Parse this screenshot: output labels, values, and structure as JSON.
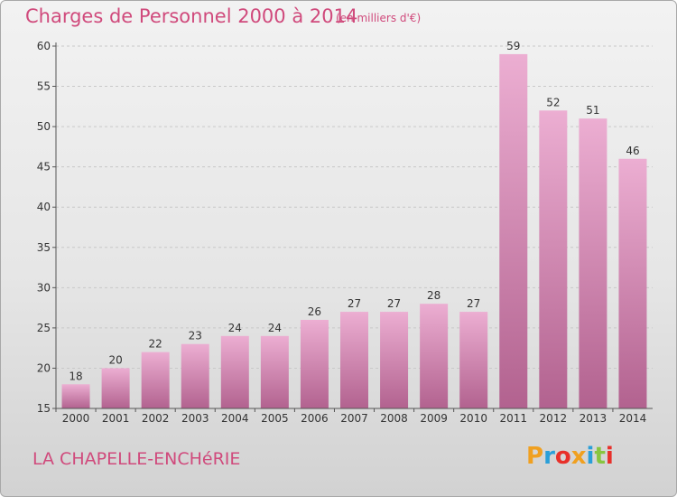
{
  "header": {
    "title": "Charges de Personnel 2000 à 2014",
    "subtitle": "(en milliers d'€)"
  },
  "footer": {
    "town": "LA CHAPELLE-ENCHéRIE",
    "logo": "Proxiti"
  },
  "colors": {
    "accent": "#d04a7c",
    "bar_light": "#ecaed2",
    "bar_dark": "#b2628f",
    "logo_letters": [
      "#f0a020",
      "#2a9fd8",
      "#e8302a",
      "#f0a020",
      "#2a9fd8",
      "#88c540",
      "#e8302a"
    ]
  },
  "chart_data": {
    "type": "bar",
    "title": "Charges de Personnel 2000 à 2014",
    "subtitle": "(en milliers d'€)",
    "xlabel": "",
    "ylabel": "",
    "categories": [
      "2000",
      "2001",
      "2002",
      "2003",
      "2004",
      "2005",
      "2006",
      "2007",
      "2008",
      "2009",
      "2010",
      "2011",
      "2012",
      "2013",
      "2014"
    ],
    "values": [
      18,
      20,
      22,
      23,
      24,
      24,
      26,
      27,
      27,
      28,
      27,
      59,
      52,
      51,
      46
    ],
    "ylim": [
      15,
      60
    ],
    "yticks": [
      15,
      20,
      25,
      30,
      35,
      40,
      45,
      50,
      55,
      60
    ],
    "grid": "horizontal dashed",
    "legend": "none"
  }
}
